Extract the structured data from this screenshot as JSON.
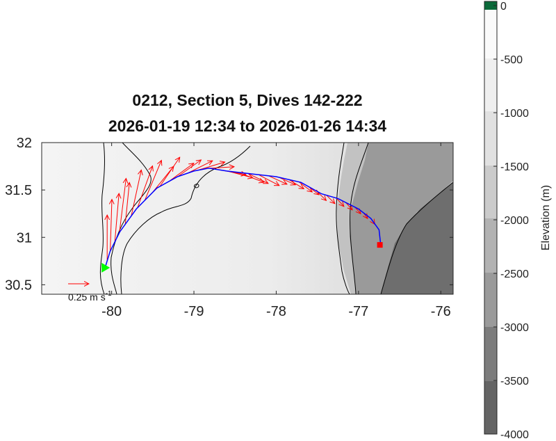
{
  "chart_data": {
    "type": "map",
    "title_line1": "0212, Section 5, Dives 142-222",
    "title_line2": "2026-01-19 12:34 to 2026-01-26 14:34",
    "xlim": [
      -80.85,
      -75.85
    ],
    "ylim": [
      30.4,
      32.0
    ],
    "x_ticks": [
      -80,
      -79,
      -78,
      -77,
      -76
    ],
    "y_ticks": [
      30.5,
      31,
      31.5,
      32
    ],
    "x_tick_labels": [
      "-80",
      "-79",
      "-78",
      "-77",
      "-76"
    ],
    "y_tick_labels": [
      "30.5",
      "31",
      "31.5",
      "32"
    ],
    "scale_arrow_label": "0.25 m s",
    "scale_arrow_exponent": "-1",
    "colorbar": {
      "label": "Elevation (m)",
      "ticks": [
        0,
        -500,
        -1000,
        -1500,
        -2000,
        -2500,
        -3000,
        -3500,
        -4000
      ],
      "tick_labels": [
        "0",
        "-500",
        "-1000",
        "-1500",
        "-2000",
        "-2500",
        "-3000",
        "-3500",
        "-4000"
      ],
      "range": [
        -4000,
        0
      ]
    },
    "track": {
      "color": "#0000ff",
      "lon": [
        -80.08,
        -80.02,
        -79.9,
        -79.7,
        -79.45,
        -79.2,
        -79.0,
        -78.82,
        -78.6,
        -78.3,
        -78.0,
        -77.7,
        -77.45,
        -77.25,
        -77.0,
        -76.85,
        -76.75,
        -76.73
      ],
      "lat": [
        30.68,
        30.85,
        31.06,
        31.3,
        31.52,
        31.64,
        31.7,
        31.73,
        31.7,
        31.67,
        31.64,
        31.58,
        31.46,
        31.41,
        31.3,
        31.2,
        31.08,
        30.92
      ]
    },
    "start_marker": {
      "lon": -80.08,
      "lat": 30.68,
      "color": "#00ff00"
    },
    "end_marker": {
      "lon": -76.74,
      "lat": 30.92,
      "color": "#ff0000"
    },
    "vectors": {
      "color": "#ff0000",
      "scale_speed": 0.25,
      "u": [
        0.0,
        0.02,
        0.05,
        0.08,
        0.05,
        0.12,
        0.18,
        0.2,
        0.26,
        0.24,
        0.3,
        0.28,
        0.3,
        0.33,
        0.32,
        0.34,
        0.3,
        0.31,
        0.24,
        0.25,
        0.22,
        0.2,
        0.18,
        0.16,
        0.13,
        0.11,
        0.1,
        0.09,
        0.08,
        0.07,
        0.05,
        0.04
      ],
      "v": [
        0.55,
        0.62,
        0.58,
        0.65,
        0.5,
        0.55,
        0.5,
        0.48,
        0.32,
        0.35,
        0.22,
        0.2,
        0.15,
        0.1,
        0.02,
        -0.06,
        -0.08,
        -0.12,
        -0.12,
        -0.13,
        -0.1,
        -0.09,
        -0.11,
        -0.12,
        -0.1,
        -0.11,
        -0.1,
        -0.1,
        -0.09,
        -0.08,
        -0.07,
        -0.06
      ]
    }
  }
}
